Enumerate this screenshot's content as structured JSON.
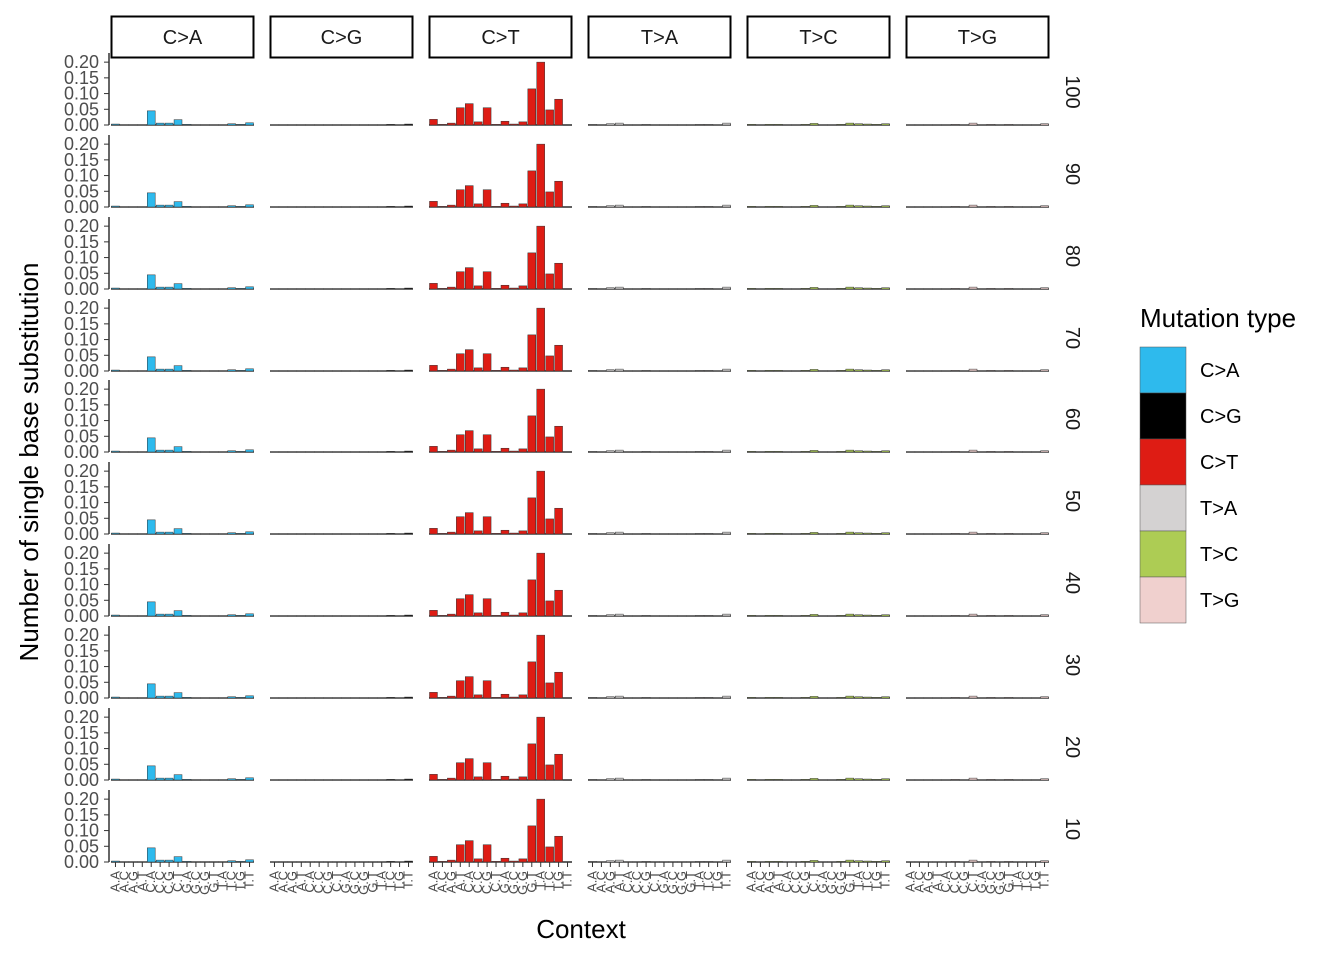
{
  "chart_data": {
    "type": "bar",
    "facet_rows": [
      "100",
      "90",
      "80",
      "70",
      "60",
      "50",
      "40",
      "30",
      "20",
      "10"
    ],
    "facet_cols": [
      "C>A",
      "C>G",
      "C>T",
      "T>A",
      "T>C",
      "T>G"
    ],
    "categories": [
      "A.A",
      "A.C",
      "A.G",
      "A.T",
      "C.A",
      "C.C",
      "C.G",
      "C.T",
      "G.A",
      "G.C",
      "G.G",
      "G.T",
      "T.A",
      "T.C",
      "T.G",
      "T.T"
    ],
    "x_tick_labels": [
      "A.A",
      "A.C",
      "A.G",
      "A.T",
      "C.A",
      "C.C",
      "C.G",
      "C.T",
      "G.A",
      "G.C",
      "G.G",
      "G.T",
      "T.A",
      "T.C",
      "T.G",
      "T.T"
    ],
    "xlabel": "Context",
    "ylabel": "Number of single base substitution",
    "y_ticks": [
      "0.00",
      "0.05",
      "0.10",
      "0.15",
      "0.20"
    ],
    "ylim": [
      0,
      0.21
    ],
    "legend": {
      "title": "Mutation type",
      "position": "right",
      "items": [
        {
          "label": "C>A",
          "color": "#2EBAED"
        },
        {
          "label": "C>G",
          "color": "#000000"
        },
        {
          "label": "C>T",
          "color": "#DE1C14"
        },
        {
          "label": "T>A",
          "color": "#D4D2D2"
        },
        {
          "label": "T>C",
          "color": "#ADCC54"
        },
        {
          "label": "T>G",
          "color": "#F0D0CE"
        }
      ]
    },
    "series": [
      {
        "type": "C>A",
        "values": [
          0.003,
          0.001,
          0.001,
          0.001,
          0.045,
          0.006,
          0.006,
          0.017,
          0.002,
          0.001,
          0.001,
          0.001,
          0.001,
          0.004,
          0.002,
          0.007
        ]
      },
      {
        "type": "C>G",
        "values": [
          0.001,
          0.001,
          0.001,
          0.001,
          0.001,
          0.001,
          0.001,
          0.001,
          0.001,
          0.001,
          0.001,
          0.001,
          0.001,
          0.002,
          0.001,
          0.003
        ]
      },
      {
        "type": "C>T",
        "values": [
          0.018,
          0.002,
          0.006,
          0.055,
          0.068,
          0.01,
          0.055,
          0.002,
          0.012,
          0.003,
          0.01,
          0.115,
          0.2,
          0.048,
          0.082,
          0.0
        ]
      },
      {
        "type": "T>A",
        "values": [
          0.002,
          0.001,
          0.004,
          0.006,
          0.001,
          0.001,
          0.002,
          0.001,
          0.001,
          0.001,
          0.001,
          0.001,
          0.002,
          0.002,
          0.001,
          0.006
        ]
      },
      {
        "type": "T>C",
        "values": [
          0.002,
          0.001,
          0.002,
          0.002,
          0.001,
          0.001,
          0.002,
          0.005,
          0.001,
          0.001,
          0.002,
          0.006,
          0.004,
          0.003,
          0.002,
          0.004
        ]
      },
      {
        "type": "T>G",
        "values": [
          0.001,
          0.001,
          0.001,
          0.001,
          0.001,
          0.002,
          0.001,
          0.006,
          0.001,
          0.002,
          0.001,
          0.002,
          0.001,
          0.001,
          0.001,
          0.004
        ]
      }
    ]
  }
}
